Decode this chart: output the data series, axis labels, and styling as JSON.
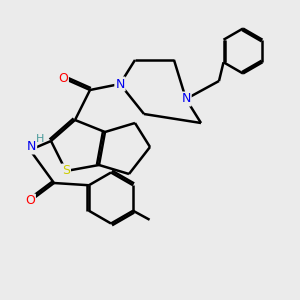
{
  "background_color": "#ebebeb",
  "atom_colors": {
    "N": "#0000ee",
    "O": "#ff0000",
    "S": "#cccc00",
    "C": "#000000",
    "H": "#4a9a9a"
  },
  "bond_color": "#000000",
  "bond_width": 1.8,
  "figsize": [
    3.0,
    3.0
  ],
  "dpi": 100
}
